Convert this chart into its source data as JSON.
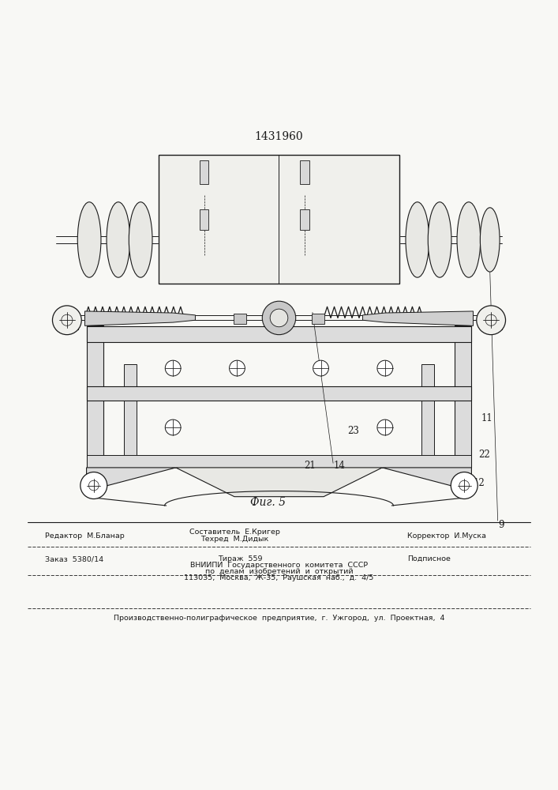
{
  "patent_number": "1431960",
  "fig_label": "Фиг. 5",
  "bg_color": "#f8f8f5",
  "line_color": "#1a1a1a",
  "editor_line": "Редактор  М.Бланар",
  "composer_line": "Составитель  Е.Кригер",
  "techred_line": "Техред  М.Дидык",
  "corrector_line": "Корректор  И.Муска",
  "order_line": "Заказ  5380/14",
  "tirazh_line": "Тираж  559",
  "podpisnoe_line": "Подписное",
  "vniip_line1": "ВНИИПИ  Государственного  комитета  СССР",
  "vniip_line2": "по  делам  изобретений  и  открытий",
  "vniip_line3": "113035,  Москва,  Ж-35,  Раушская  наб.,  д.  4/5",
  "production_line": "Производственно-полиграфическое  предприятие,  г.  Ужгород,  ул.  Проектная,  4"
}
